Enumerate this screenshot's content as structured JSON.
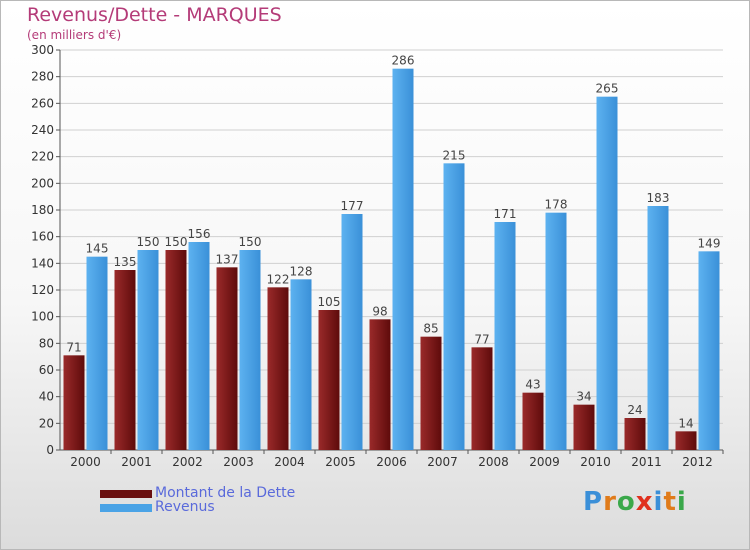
{
  "chart_data": {
    "type": "bar",
    "title": "Revenus/Dette - MARQUES",
    "subtitle": "(en milliers d'€)",
    "categories": [
      "2000",
      "2001",
      "2002",
      "2003",
      "2004",
      "2005",
      "2006",
      "2007",
      "2008",
      "2009",
      "2010",
      "2011",
      "2012"
    ],
    "series": [
      {
        "name": "Montant de la Dette",
        "color": "#7a1414",
        "values": [
          71,
          135,
          150,
          137,
          122,
          105,
          98,
          85,
          77,
          43,
          34,
          24,
          14
        ]
      },
      {
        "name": "Revenus",
        "color": "#4aa3e6",
        "values": [
          145,
          150,
          156,
          150,
          128,
          177,
          286,
          215,
          171,
          178,
          265,
          183,
          149
        ]
      }
    ],
    "ylim": [
      0,
      300
    ],
    "ytick_step": 20,
    "grid": true,
    "legend_position": "bottom-left"
  },
  "logo": {
    "text": "Proxiti"
  }
}
